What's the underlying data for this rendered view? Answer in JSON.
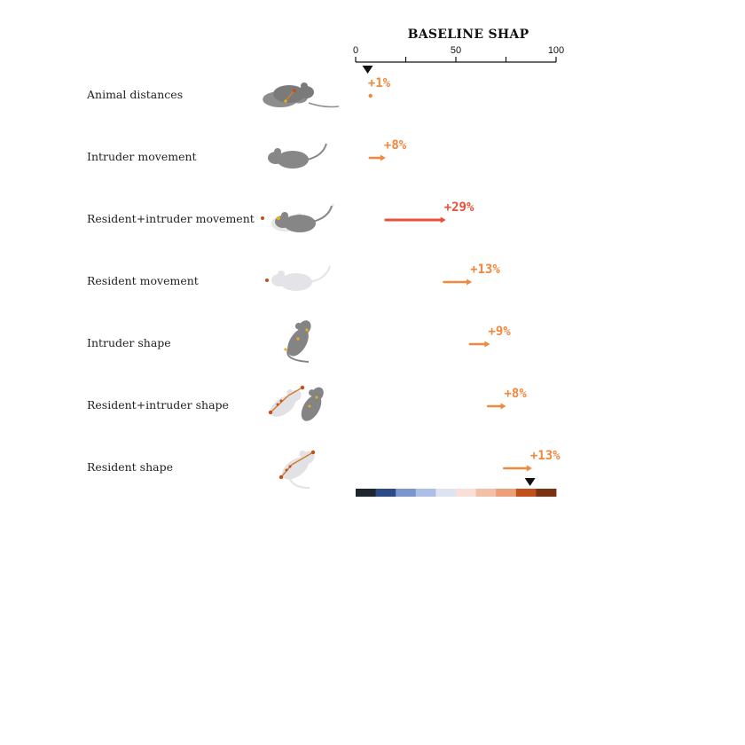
{
  "chart_data": {
    "type": "waterfall-arrows",
    "title": "BASELINE SHAP",
    "xlim": [
      0,
      100
    ],
    "ticks": [
      0,
      25,
      50,
      75,
      100
    ],
    "tick_labels": [
      "0",
      "",
      "50",
      "",
      "100"
    ],
    "baseline": 6,
    "final": 87,
    "rows": [
      {
        "label": "Animal distances",
        "start": 6,
        "end": 7,
        "delta_label": "+1%",
        "color": "#f0883e",
        "icon": "mice-pair-distance-icon"
      },
      {
        "label": "Intruder movement",
        "start": 7,
        "end": 15,
        "delta_label": "+8%",
        "color": "#f0883e",
        "icon": "intruder-mouse-movement-icon"
      },
      {
        "label": "Resident+intruder movement",
        "start": 15,
        "end": 45,
        "delta_label": "+29%",
        "color": "#e8503a",
        "icon": "pair-movement-icon"
      },
      {
        "label": "Resident movement",
        "start": 44,
        "end": 58,
        "delta_label": "+13%",
        "color": "#f0883e",
        "icon": "resident-mouse-movement-icon"
      },
      {
        "label": "Intruder shape",
        "start": 57,
        "end": 67,
        "delta_label": "+9%",
        "color": "#f0883e",
        "icon": "intruder-shape-icon"
      },
      {
        "label": "Resident+intruder shape",
        "start": 66,
        "end": 75,
        "delta_label": "+8%",
        "color": "#f0883e",
        "icon": "pair-shape-icon"
      },
      {
        "label": "Resident shape",
        "start": 74,
        "end": 88,
        "delta_label": "+13%",
        "color": "#f0883e",
        "icon": "resident-shape-icon"
      }
    ],
    "colorbar": [
      "#1f2630",
      "#2c4a86",
      "#7a96cc",
      "#adbfe2",
      "#dde3f0",
      "#f8e0d8",
      "#f1c0a6",
      "#eba07a",
      "#c2501c",
      "#7a3312"
    ]
  }
}
